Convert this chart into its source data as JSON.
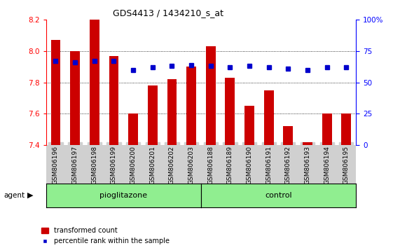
{
  "title": "GDS4413 / 1434210_s_at",
  "samples": [
    "GSM806196",
    "GSM806197",
    "GSM806198",
    "GSM806199",
    "GSM806200",
    "GSM806201",
    "GSM806202",
    "GSM806203",
    "GSM806188",
    "GSM806189",
    "GSM806190",
    "GSM806191",
    "GSM806192",
    "GSM806193",
    "GSM806194",
    "GSM806195"
  ],
  "transformed_count_all": [
    8.07,
    8.0,
    8.2,
    7.97,
    7.6,
    7.78,
    7.82,
    7.9,
    8.03,
    7.83,
    7.65,
    7.75,
    7.52,
    7.42,
    7.6,
    7.6
  ],
  "percentile_rank": [
    67,
    66,
    67,
    67,
    60,
    62,
    63,
    64,
    63,
    62,
    63,
    62,
    61,
    60,
    62,
    62
  ],
  "group_labels": [
    "pioglitazone",
    "control"
  ],
  "ylim": [
    7.4,
    8.2
  ],
  "ylim_right": [
    0,
    100
  ],
  "yticks_left": [
    7.4,
    7.6,
    7.8,
    8.0,
    8.2
  ],
  "yticks_right": [
    0,
    25,
    50,
    75,
    100
  ],
  "bar_color": "#cc0000",
  "dot_color": "#0000cc",
  "bar_bottom": 7.4,
  "legend_items": [
    "transformed count",
    "percentile rank within the sample"
  ],
  "agent_label": "agent"
}
